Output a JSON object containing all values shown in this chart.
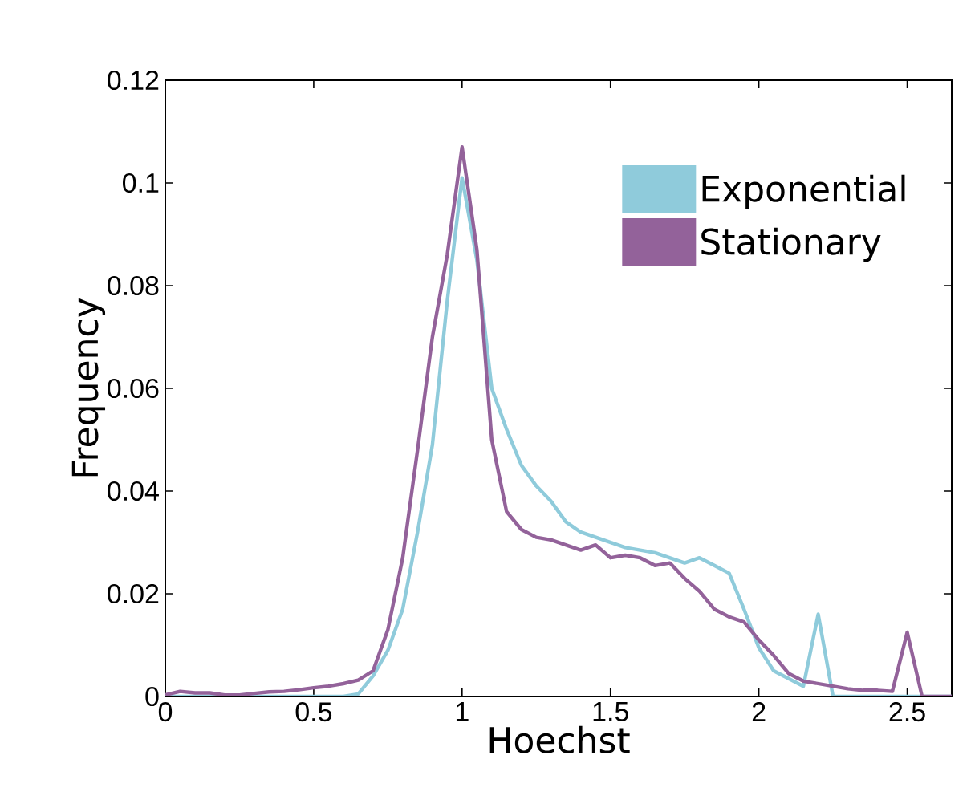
{
  "chart_data": {
    "type": "line",
    "xlabel": "Hoechst",
    "ylabel": "Frequency",
    "x": [
      0,
      0.05,
      0.1,
      0.15,
      0.2,
      0.25,
      0.3,
      0.35,
      0.4,
      0.45,
      0.5,
      0.55,
      0.6,
      0.65,
      0.7,
      0.75,
      0.8,
      0.85,
      0.9,
      0.95,
      1.0,
      1.05,
      1.1,
      1.15,
      1.2,
      1.25,
      1.3,
      1.35,
      1.4,
      1.45,
      1.5,
      1.55,
      1.6,
      1.65,
      1.7,
      1.75,
      1.8,
      1.85,
      1.9,
      1.95,
      2.0,
      2.05,
      2.1,
      2.15,
      2.2,
      2.25,
      2.3,
      2.35,
      2.4,
      2.45,
      2.5,
      2.55,
      2.6,
      2.65
    ],
    "series": [
      {
        "name": "Exponential",
        "color": "#8fcbdb",
        "values": [
          0,
          0,
          0,
          0,
          0,
          0,
          0,
          0,
          0,
          0,
          0,
          0,
          0,
          0.0005,
          0.004,
          0.009,
          0.017,
          0.032,
          0.049,
          0.077,
          0.101,
          0.085,
          0.06,
          0.052,
          0.045,
          0.041,
          0.038,
          0.034,
          0.032,
          0.031,
          0.03,
          0.029,
          0.0285,
          0.028,
          0.027,
          0.026,
          0.027,
          0.0255,
          0.024,
          0.017,
          0.0095,
          0.005,
          0.0035,
          0.002,
          0.016,
          0,
          0,
          0,
          0,
          0,
          0,
          0,
          0,
          0
        ]
      },
      {
        "name": "Stationary",
        "color": "#93629a",
        "values": [
          0.0003,
          0.001,
          0.0007,
          0.0007,
          0.0003,
          0.0003,
          0.0006,
          0.0009,
          0.001,
          0.0013,
          0.0017,
          0.002,
          0.0025,
          0.0032,
          0.005,
          0.013,
          0.027,
          0.048,
          0.07,
          0.086,
          0.107,
          0.087,
          0.05,
          0.036,
          0.0325,
          0.031,
          0.0305,
          0.0295,
          0.0285,
          0.0295,
          0.027,
          0.0275,
          0.027,
          0.0255,
          0.026,
          0.023,
          0.0205,
          0.017,
          0.0155,
          0.0145,
          0.011,
          0.008,
          0.0045,
          0.003,
          0.0025,
          0.002,
          0.0015,
          0.0012,
          0.0012,
          0.001,
          0.0125,
          0,
          0,
          0
        ]
      }
    ],
    "xlim": [
      0,
      2.65
    ],
    "ylim": [
      0,
      0.12
    ],
    "xticks": [
      0,
      0.5,
      1,
      1.5,
      2,
      2.5
    ],
    "yticks": [
      0,
      0.02,
      0.04,
      0.06,
      0.08,
      0.1,
      0.12
    ],
    "legend": "top right",
    "grid": false,
    "marker": "none",
    "line_style": "solid"
  }
}
